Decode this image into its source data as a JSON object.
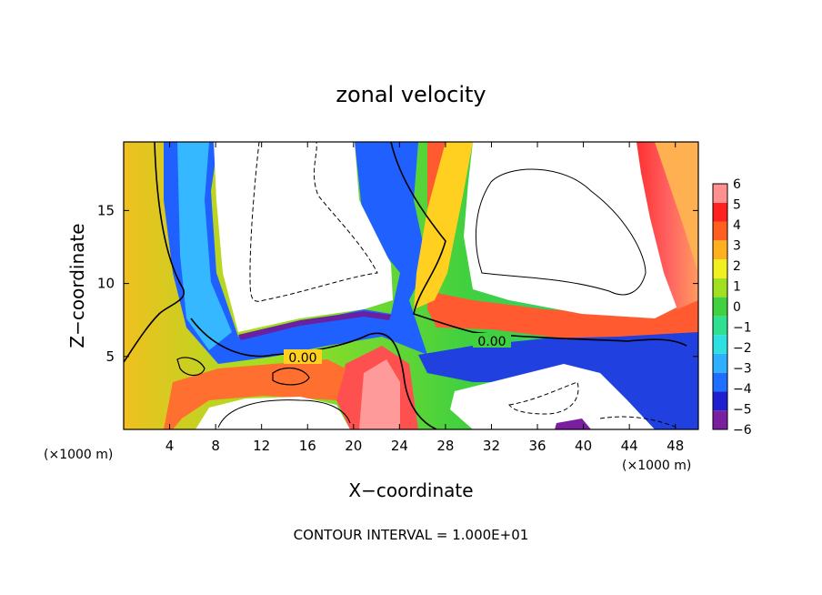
{
  "chart_data": {
    "type": "heatmap",
    "title": "zonal velocity",
    "xlabel": "X−coordinate",
    "ylabel": "Z−coordinate",
    "x_unit_left": "(×1000 m)",
    "x_unit_right": "(×1000 m)",
    "xlim": [
      0,
      50
    ],
    "ylim": [
      0,
      19.7
    ],
    "x_ticks": [
      4,
      8,
      12,
      16,
      20,
      24,
      28,
      32,
      36,
      40,
      44,
      48
    ],
    "y_ticks": [
      5,
      10,
      15
    ],
    "colorbar": {
      "min": -6,
      "max": 6,
      "ticks": [
        6,
        5,
        4,
        3,
        2,
        1,
        0,
        -1,
        -2,
        -3,
        -4,
        -5,
        -6
      ],
      "tick_labels": [
        "6",
        "5",
        "4",
        "3",
        "2",
        "1",
        "0",
        "−1",
        "−2",
        "−3",
        "−4",
        "−5",
        "−6"
      ],
      "colors": [
        "#7a1fa0",
        "#1f1fd0",
        "#1f6fff",
        "#2fb0ff",
        "#2fe0e0",
        "#2fe090",
        "#40d040",
        "#a0e020",
        "#f0f020",
        "#ffb020",
        "#ff6020",
        "#ff2020",
        "#ff9090"
      ]
    },
    "contour_labels": [
      {
        "text": "0.00",
        "x": 15.5,
        "y": 4.8
      },
      {
        "text": "0.00",
        "x": 32.0,
        "y": 6.0
      }
    ],
    "footer": "CONTOUR INTERVAL = 1.000E+01",
    "grid": false
  }
}
